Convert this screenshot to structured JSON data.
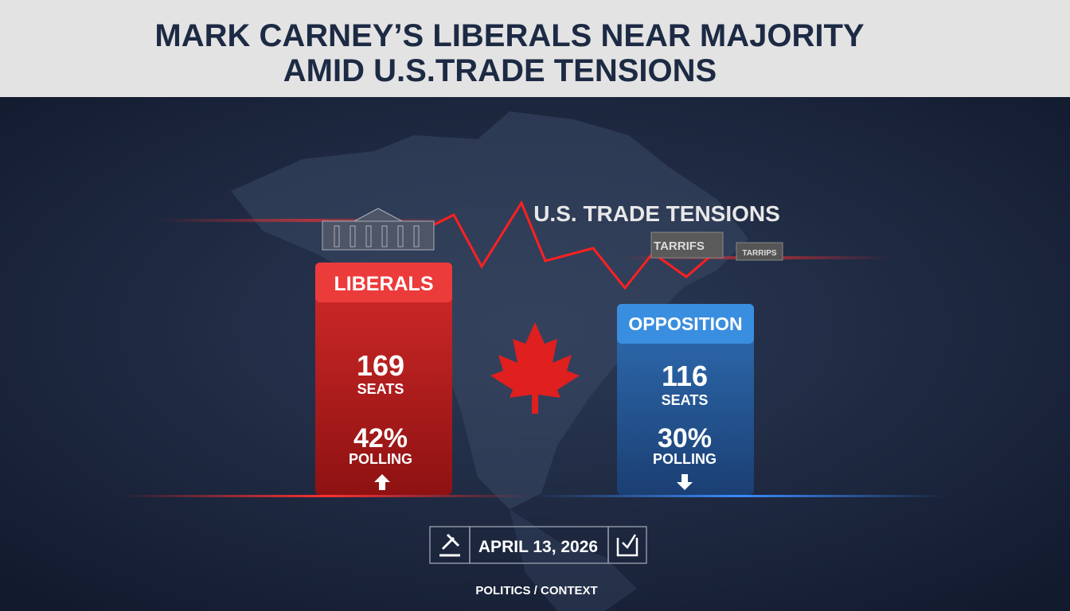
{
  "header": {
    "title_lines": [
      "MARK CARNEY’S LIBERALS NEAR MAJORITY",
      "AMID U.S.TRADE TENSIONS"
    ]
  },
  "banner": {
    "label": "U.S. TRADE TENSIONS",
    "crates": [
      "TARRIFS",
      "TARRIPS"
    ]
  },
  "panels": [
    {
      "name": "LIBERALS",
      "seats": "169",
      "seats_label": "SEATS",
      "polling": "42%",
      "polling_label": "POLLING"
    },
    {
      "name": "OPPOSITION",
      "seats": "116",
      "seats_label": "SEATS",
      "polling": "30%",
      "polling_label": "POLLING"
    }
  ],
  "date": "APRIL 13, 2026",
  "footer": "POLITICS / CONTEXT"
}
